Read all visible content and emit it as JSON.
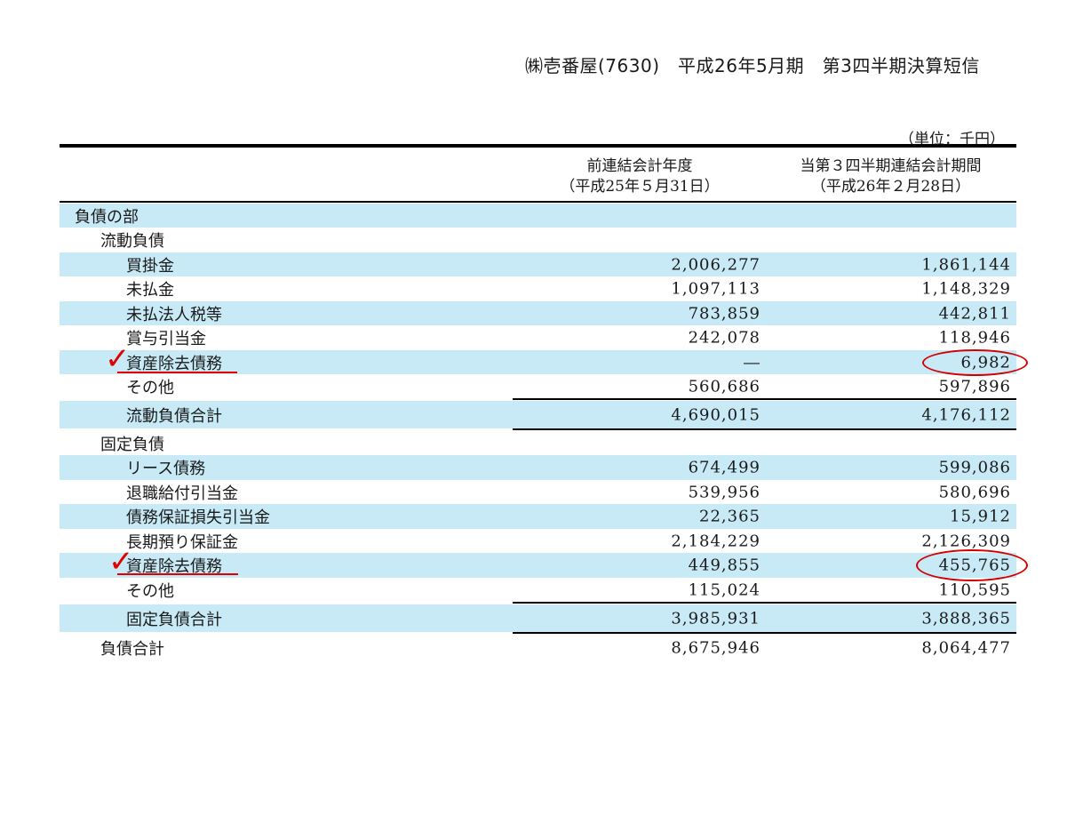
{
  "header": {
    "title": "㈱壱番屋(7630)　平成26年5月期　第3四半期決算短信",
    "unit": "（単位：千円）"
  },
  "columns": {
    "prev": {
      "line1": "前連結会計年度",
      "line2": "（平成25年５月31日）"
    },
    "curr": {
      "line1": "当第３四半期連結会計期間",
      "line2": "（平成26年２月28日）"
    }
  },
  "rows": [
    {
      "label": "負債の部",
      "prev": "",
      "curr": ""
    },
    {
      "label": "流動負債",
      "prev": "",
      "curr": ""
    },
    {
      "label": "買掛金",
      "prev": "2,006,277",
      "curr": "1,861,144"
    },
    {
      "label": "未払金",
      "prev": "1,097,113",
      "curr": "1,148,329"
    },
    {
      "label": "未払法人税等",
      "prev": "783,859",
      "curr": "442,811"
    },
    {
      "label": "賞与引当金",
      "prev": "242,078",
      "curr": "118,946"
    },
    {
      "label": "資産除去債務",
      "prev": "―",
      "curr": "6,982"
    },
    {
      "label": "その他",
      "prev": "560,686",
      "curr": "597,896"
    },
    {
      "label": "流動負債合計",
      "prev": "4,690,015",
      "curr": "4,176,112"
    },
    {
      "label": "固定負債",
      "prev": "",
      "curr": ""
    },
    {
      "label": "リース債務",
      "prev": "674,499",
      "curr": "599,086"
    },
    {
      "label": "退職給付引当金",
      "prev": "539,956",
      "curr": "580,696"
    },
    {
      "label": "債務保証損失引当金",
      "prev": "22,365",
      "curr": "15,912"
    },
    {
      "label": "長期預り保証金",
      "prev": "2,184,229",
      "curr": "2,126,309"
    },
    {
      "label": "資産除去債務",
      "prev": "449,855",
      "curr": "455,765"
    },
    {
      "label": "その他",
      "prev": "115,024",
      "curr": "110,595"
    },
    {
      "label": "固定負債合計",
      "prev": "3,985,931",
      "curr": "3,888,365"
    },
    {
      "label": "負債合計",
      "prev": "8,675,946",
      "curr": "8,064,477"
    }
  ],
  "annotations": {
    "check_mark": "✓",
    "highlight_color": "#e00000"
  }
}
